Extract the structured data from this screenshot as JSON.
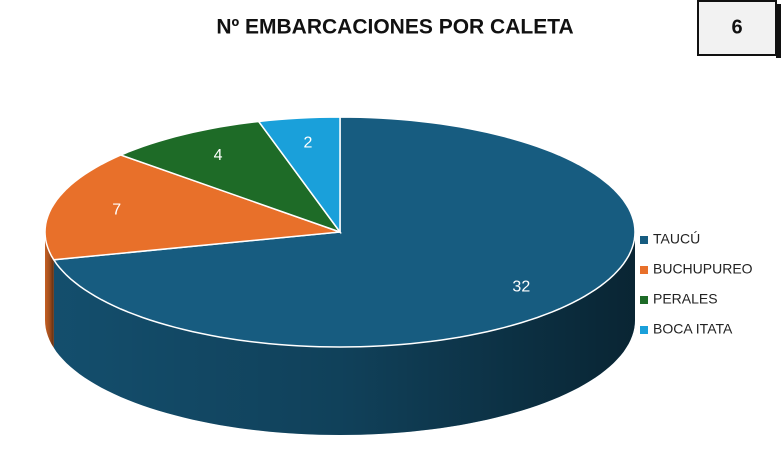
{
  "chart_data": {
    "type": "pie3d",
    "title": "Nº EMBARCACIONES POR CALETA",
    "badge": "6",
    "categories": [
      "TAUCÚ",
      "BUCHUPUREO",
      "PERALES",
      "BOCA ITATA"
    ],
    "values": [
      32,
      7,
      4,
      2
    ],
    "colors": [
      "#175c80",
      "#e8702a",
      "#1e6b27",
      "#1aa0da"
    ],
    "legend": "right"
  }
}
